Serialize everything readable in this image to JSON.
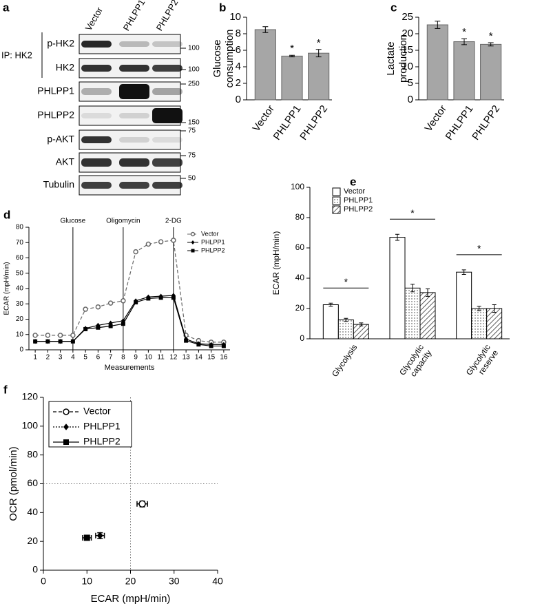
{
  "blot": {
    "panel": "a",
    "group_label": "IP: HK2",
    "lanes": [
      "Vector",
      "PHLPP1",
      "PHLPP2"
    ],
    "rows": [
      {
        "label": "p-HK2",
        "marker": 100
      },
      {
        "label": "HK2",
        "marker": 100
      },
      {
        "label": "PHLPP1",
        "marker": 250
      },
      {
        "label": "PHLPP2",
        "marker": 150
      },
      {
        "label": "p-AKT",
        "marker": 75
      },
      {
        "label": "AKT",
        "marker": 75
      },
      {
        "label": "Tubulin",
        "marker": 50
      }
    ]
  },
  "chart_data": [
    {
      "panel": "b",
      "type": "bar",
      "ylabel": [
        "Glucose",
        "consumption"
      ],
      "categories": [
        "Vector",
        "PHLPP1",
        "PHLPP2"
      ],
      "values": [
        8.5,
        5.3,
        5.65
      ],
      "errors": [
        0.35,
        0.1,
        0.45
      ],
      "significance": [
        null,
        "*",
        "*"
      ],
      "color": "#a6a6a6",
      "ylim": [
        0,
        10
      ],
      "yticks": [
        0,
        2,
        4,
        6,
        8,
        10
      ]
    },
    {
      "panel": "c",
      "type": "bar",
      "ylabel": [
        "Lactate",
        "production"
      ],
      "categories": [
        "Vector",
        "PHLPP1",
        "PHLPP2"
      ],
      "values": [
        22.7,
        17.6,
        16.8
      ],
      "errors": [
        1.1,
        0.9,
        0.5
      ],
      "significance": [
        null,
        "*",
        "*"
      ],
      "color": "#a6a6a6",
      "ylim": [
        0,
        25
      ],
      "yticks": [
        0,
        5,
        10,
        15,
        20,
        25
      ]
    },
    {
      "panel": "d",
      "type": "line",
      "ylabel": "ECAR (mpH/min)",
      "xlabel": "Measurements",
      "x": [
        1,
        2,
        3,
        4,
        5,
        6,
        7,
        8,
        9,
        10,
        11,
        12,
        13,
        14,
        15,
        16
      ],
      "xlim": [
        0.5,
        16.5
      ],
      "xticks": [
        1,
        2,
        3,
        4,
        5,
        6,
        7,
        8,
        9,
        10,
        11,
        12,
        13,
        14,
        15,
        16
      ],
      "ylim": [
        0,
        80
      ],
      "yticks": [
        0,
        10,
        20,
        30,
        40,
        50,
        60,
        70,
        80
      ],
      "events": [
        {
          "x": 4,
          "label": "Glucose"
        },
        {
          "x": 8,
          "label": "Oligomycin"
        },
        {
          "x": 12,
          "label": "2-DG"
        }
      ],
      "legend": "upper right",
      "series": [
        {
          "name": "Vector",
          "color": "#666666",
          "linestyle": "dashed",
          "marker": "open-circle",
          "values": [
            9.5,
            9.5,
            9.5,
            9.5,
            26.5,
            28,
            30.5,
            32,
            64,
            69,
            70.5,
            71.5,
            9.5,
            6,
            5,
            5
          ]
        },
        {
          "name": "PHLPP1",
          "color": "#000000",
          "linestyle": "solid",
          "marker": "diamond",
          "values": [
            5.5,
            5.5,
            5.5,
            5.5,
            14,
            16,
            17.5,
            19,
            32,
            34.5,
            35,
            35.5,
            7,
            4,
            3.5,
            3.5
          ]
        },
        {
          "name": "PHLPP2",
          "color": "#000000",
          "linestyle": "solid",
          "marker": "square",
          "values": [
            5.5,
            5.5,
            5.5,
            5.5,
            13.5,
            14.5,
            15.5,
            17,
            31,
            33.5,
            34,
            34,
            6,
            3.5,
            2.5,
            2.5
          ]
        }
      ]
    },
    {
      "panel": "e",
      "type": "grouped-bar",
      "ylabel": "ECAR (mpH/min)",
      "categories": [
        [
          "Glycolysis"
        ],
        [
          "Glycolytic",
          "capacity"
        ],
        [
          "Glycolytic",
          "reserve"
        ]
      ],
      "ylim": [
        0,
        100
      ],
      "yticks": [
        0,
        20,
        40,
        60,
        80,
        100
      ],
      "legend": "upper left",
      "significance": [
        "*",
        "*",
        "*"
      ],
      "series": [
        {
          "name": "Vector",
          "pattern": "none",
          "values": [
            22.5,
            67,
            44
          ],
          "errors": [
            1,
            2,
            1.5
          ]
        },
        {
          "name": "PHLPP1",
          "pattern": "dots",
          "values": [
            12.5,
            33.5,
            20
          ],
          "errors": [
            1,
            2.5,
            1.5
          ]
        },
        {
          "name": "PHLPP2",
          "pattern": "hatch",
          "values": [
            9.5,
            30.5,
            20
          ],
          "errors": [
            1,
            2.5,
            2.5
          ]
        }
      ]
    },
    {
      "panel": "f",
      "type": "scatter",
      "xlabel": "ECAR (mpH/min)",
      "ylabel": "OCR (pmol/min)",
      "xlim": [
        0,
        40
      ],
      "xticks": [
        0,
        10,
        20,
        30,
        40
      ],
      "ylim": [
        0,
        120
      ],
      "yticks": [
        0,
        20,
        40,
        60,
        80,
        100,
        120
      ],
      "reference_lines": {
        "x": 20,
        "y": 60
      },
      "legend": "upper left",
      "series": [
        {
          "name": "Vector",
          "color": "#000000",
          "linestyle": "dashed",
          "marker": "open-circle",
          "x": [
            22.7
          ],
          "values": [
            46
          ],
          "xerr": [
            1.2
          ],
          "yerr": [
            2
          ]
        },
        {
          "name": "PHLPP1",
          "color": "#000000",
          "linestyle": "dotted",
          "marker": "diamond",
          "x": [
            13
          ],
          "values": [
            24
          ],
          "xerr": [
            1
          ],
          "yerr": [
            2
          ]
        },
        {
          "name": "PHLPP2",
          "color": "#000000",
          "linestyle": "solid",
          "marker": "square",
          "x": [
            10
          ],
          "values": [
            22.5
          ],
          "xerr": [
            1
          ],
          "yerr": [
            1.5
          ]
        }
      ]
    }
  ]
}
